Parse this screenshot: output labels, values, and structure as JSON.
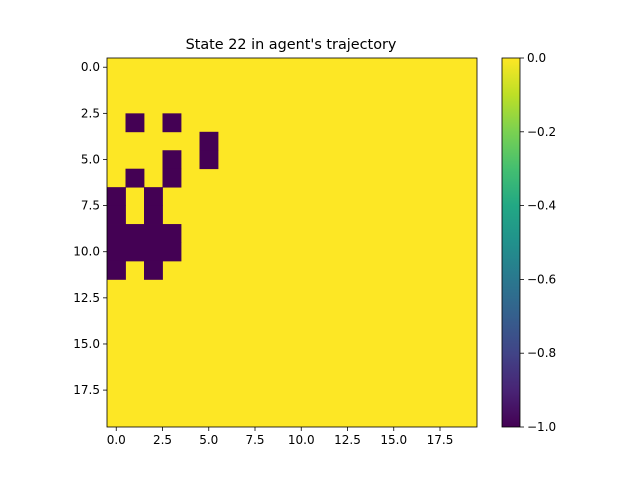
{
  "chart_data": {
    "type": "heatmap",
    "title": "State 22 in agent's trajectory",
    "xlabel": "",
    "ylabel": "",
    "grid": false,
    "colormap": "viridis",
    "rows": 20,
    "cols": 20,
    "xlim": [
      -0.5,
      19.5
    ],
    "ylim": [
      19.5,
      -0.5
    ],
    "xticks": [
      0.0,
      2.5,
      5.0,
      7.5,
      10.0,
      12.5,
      15.0,
      17.5
    ],
    "xtick_labels": [
      "0.0",
      "2.5",
      "5.0",
      "7.5",
      "10.0",
      "12.5",
      "15.0",
      "17.5"
    ],
    "yticks": [
      0.0,
      2.5,
      5.0,
      7.5,
      10.0,
      12.5,
      15.0,
      17.5
    ],
    "ytick_labels": [
      "0.0",
      "2.5",
      "5.0",
      "7.5",
      "10.0",
      "12.5",
      "15.0",
      "17.5"
    ],
    "default_value": 0.0,
    "cells": [
      {
        "row": 3,
        "col": 1,
        "value": -1.0
      },
      {
        "row": 3,
        "col": 3,
        "value": -1.0
      },
      {
        "row": 4,
        "col": 5,
        "value": -1.0
      },
      {
        "row": 5,
        "col": 3,
        "value": -1.0
      },
      {
        "row": 5,
        "col": 5,
        "value": -1.0
      },
      {
        "row": 6,
        "col": 1,
        "value": -1.0
      },
      {
        "row": 6,
        "col": 3,
        "value": -1.0
      },
      {
        "row": 7,
        "col": 0,
        "value": -1.0
      },
      {
        "row": 7,
        "col": 2,
        "value": -1.0
      },
      {
        "row": 8,
        "col": 0,
        "value": -1.0
      },
      {
        "row": 8,
        "col": 2,
        "value": -1.0
      },
      {
        "row": 9,
        "col": 0,
        "value": -1.0
      },
      {
        "row": 9,
        "col": 1,
        "value": -1.0
      },
      {
        "row": 9,
        "col": 2,
        "value": -1.0
      },
      {
        "row": 9,
        "col": 3,
        "value": -1.0
      },
      {
        "row": 10,
        "col": 0,
        "value": -1.0
      },
      {
        "row": 10,
        "col": 1,
        "value": -1.0
      },
      {
        "row": 10,
        "col": 2,
        "value": -1.0
      },
      {
        "row": 10,
        "col": 3,
        "value": -1.0
      },
      {
        "row": 11,
        "col": 0,
        "value": -1.0
      },
      {
        "row": 11,
        "col": 2,
        "value": -1.0
      }
    ],
    "colorbar": {
      "range": [
        -1.0,
        0.0
      ],
      "ticks": [
        0.0,
        -0.2,
        -0.4,
        -0.6,
        -0.8,
        -1.0
      ],
      "tick_labels": [
        "0.0",
        "−0.2",
        "−0.4",
        "−0.6",
        "−0.8",
        "−1.0"
      ]
    },
    "colors": {
      "min": "#440154",
      "max": "#fde725"
    }
  }
}
